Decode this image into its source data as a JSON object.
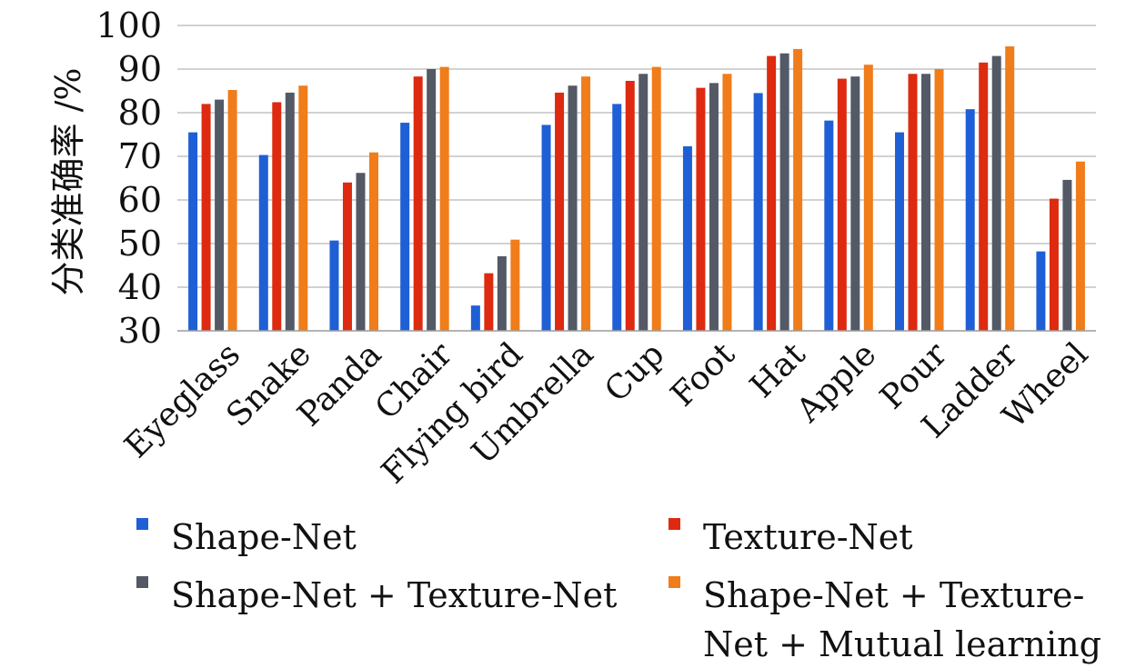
{
  "chart_data": {
    "type": "bar",
    "title": "",
    "xlabel": "",
    "ylabel": "分类准确率  /%",
    "ylim": [
      30,
      100
    ],
    "yticks": [
      30,
      40,
      50,
      60,
      70,
      80,
      90,
      100
    ],
    "grid": true,
    "legend_position": "bottom",
    "categories": [
      "Eyeglass",
      "Snake",
      "Panda",
      "Chair",
      "Flying bird",
      "Umbrella",
      "Cup",
      "Foot",
      "Hat",
      "Apple",
      "Pour",
      "Ladder",
      "Wheel"
    ],
    "series": [
      {
        "name": "Shape-Net",
        "color": "#1f5fd6",
        "values": [
          75.5,
          70.3,
          50.7,
          77.7,
          35.8,
          77.2,
          82.0,
          72.3,
          84.5,
          78.2,
          75.5,
          80.8,
          48.2
        ]
      },
      {
        "name": "Texture-Net",
        "color": "#dd2a10",
        "values": [
          82.0,
          82.4,
          64.0,
          88.3,
          43.2,
          84.6,
          87.3,
          85.7,
          93.0,
          87.8,
          88.9,
          91.5,
          60.3
        ]
      },
      {
        "name": "Shape-Net + Texture-Net",
        "color": "#535a66",
        "values": [
          83.0,
          84.6,
          66.2,
          90.0,
          47.1,
          86.2,
          88.9,
          86.8,
          93.6,
          88.3,
          88.9,
          93.0,
          64.6
        ]
      },
      {
        "name": "Shape-Net + Texture-Net + Mutual learning",
        "color": "#f07c1a",
        "legend_lines": [
          "Shape-Net + Texture-",
          "Net + Mutual learning"
        ],
        "values": [
          85.2,
          86.2,
          70.9,
          90.5,
          50.9,
          88.3,
          90.5,
          88.9,
          94.6,
          91.0,
          90.0,
          95.2,
          68.8
        ]
      }
    ]
  }
}
